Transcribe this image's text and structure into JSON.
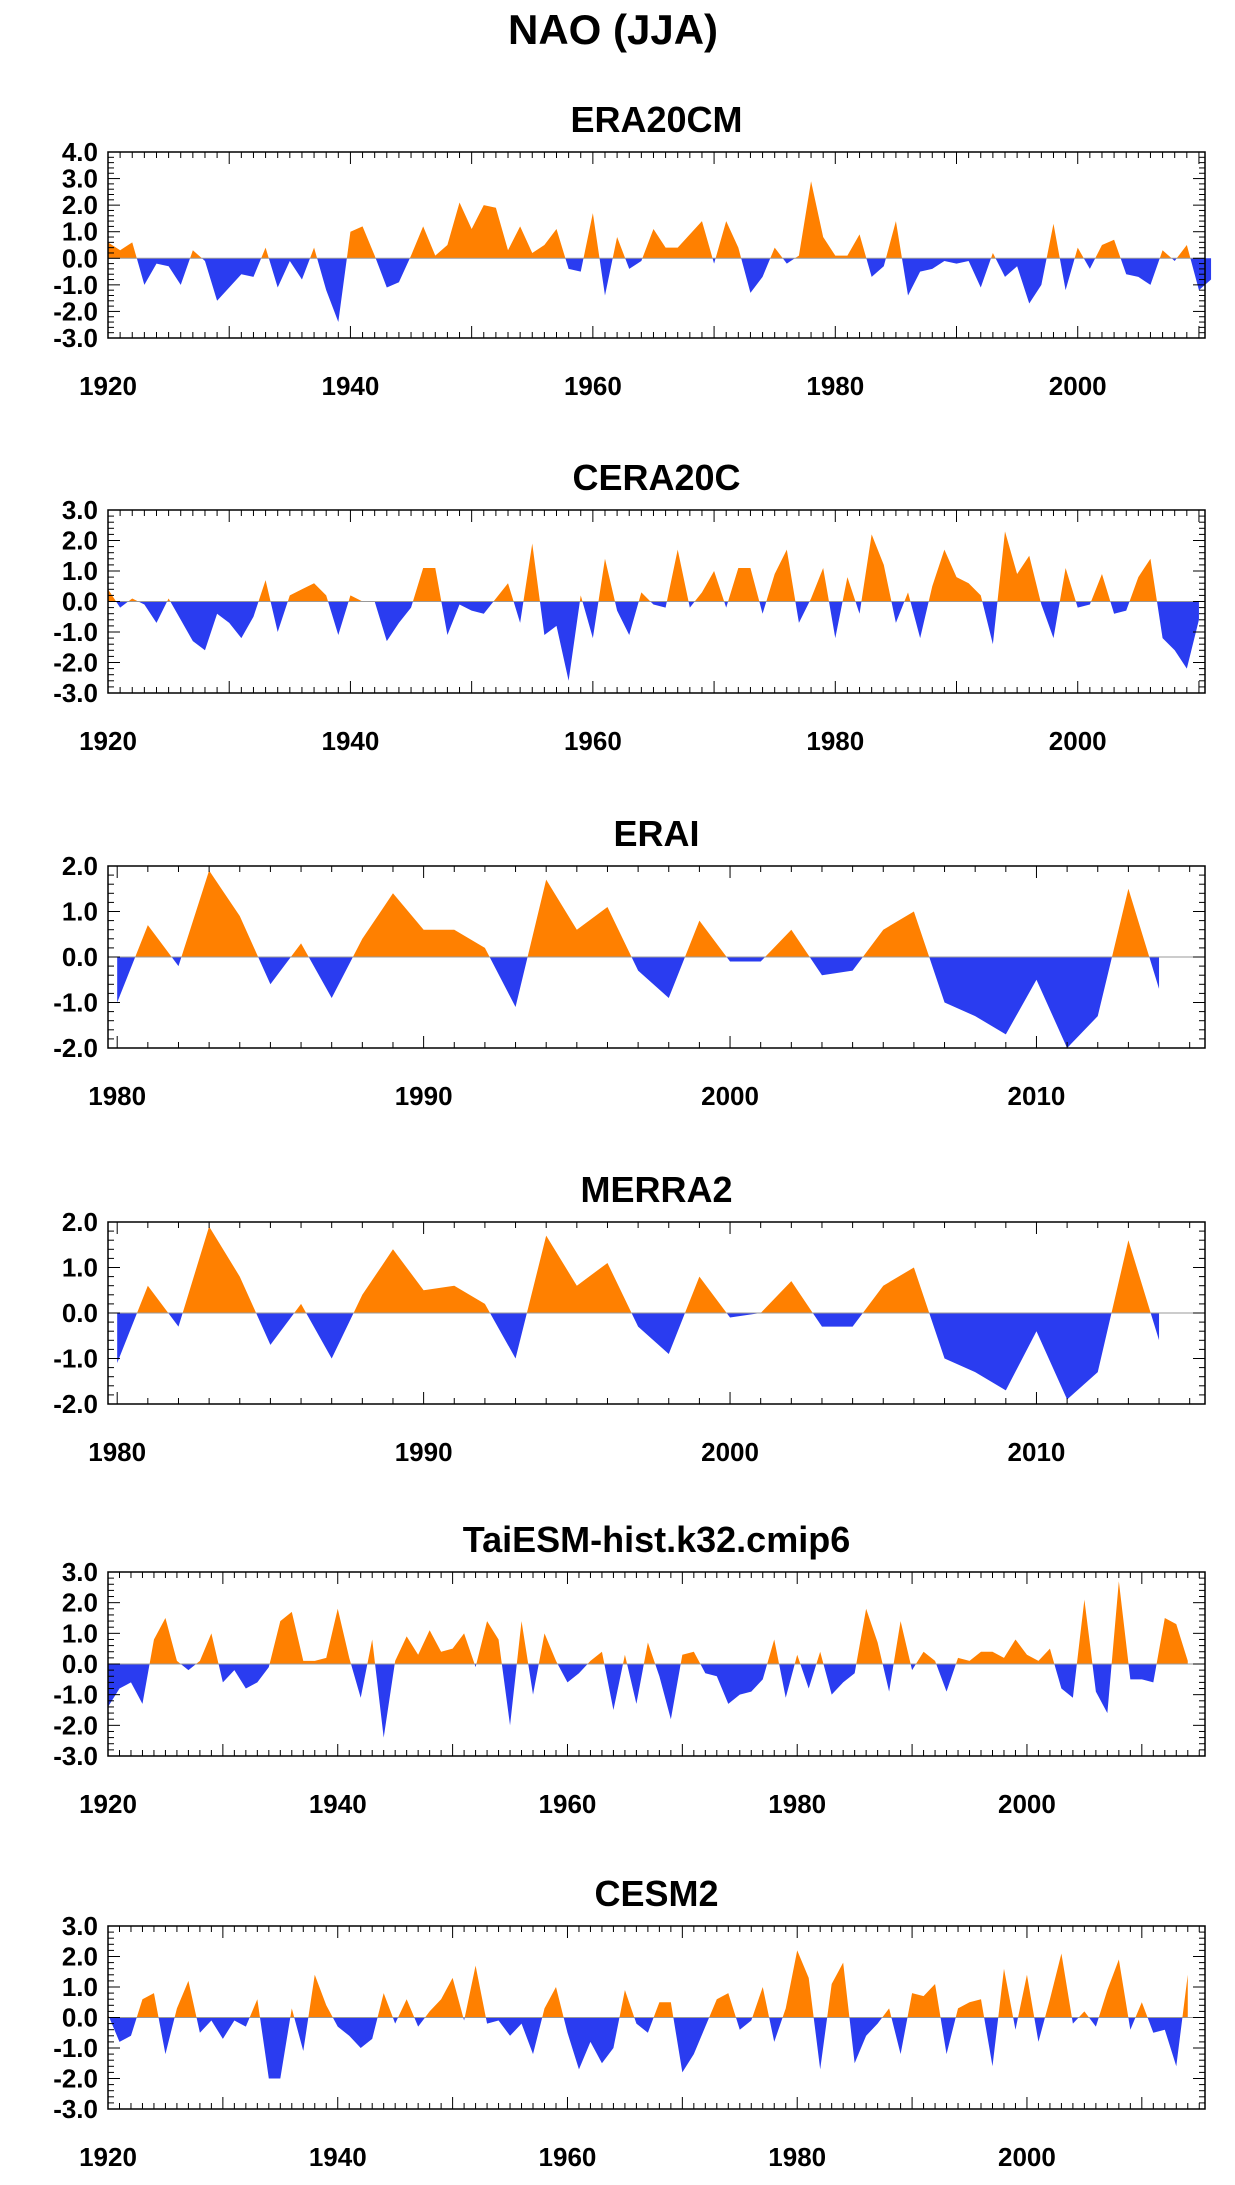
{
  "figure": {
    "title": "NAO (JJA)"
  },
  "colors": {
    "positive": "#ff8000",
    "negative": "#2a3cf0",
    "axis": "#000000",
    "zero_line": "#999999"
  },
  "chart_data": [
    {
      "type": "area",
      "title": "ERA20CM",
      "xlabel": "",
      "ylabel": "",
      "xlim": [
        1920,
        2010.5
      ],
      "ylim": [
        -3.0,
        4.0
      ],
      "yticks": [
        "4.0",
        "3.0",
        "2.0",
        "1.0",
        "0.0",
        "-1.0",
        "-2.0",
        "-3.0"
      ],
      "xticks": [
        "1920",
        "1940",
        "1960",
        "1980",
        "2000"
      ],
      "grid": false,
      "x_start": 1920,
      "values": [
        0.6,
        0.3,
        0.6,
        -1.0,
        -0.2,
        -0.3,
        -1.0,
        0.3,
        -0.1,
        -1.6,
        -1.1,
        -0.6,
        -0.7,
        0.4,
        -1.1,
        -0.1,
        -0.8,
        0.4,
        -1.2,
        -2.4,
        1.0,
        1.2,
        0.1,
        -1.1,
        -0.9,
        0.1,
        1.2,
        0.1,
        0.5,
        2.1,
        1.1,
        2.0,
        1.9,
        0.3,
        1.2,
        0.2,
        0.5,
        1.1,
        -0.4,
        -0.5,
        1.7,
        -1.4,
        0.8,
        -0.4,
        -0.1,
        1.1,
        0.4,
        0.4,
        0.9,
        1.4,
        -0.2,
        1.4,
        0.4,
        -1.3,
        -0.7,
        0.4,
        -0.2,
        0.1,
        2.9,
        0.8,
        0.1,
        0.1,
        0.9,
        -0.7,
        -0.3,
        1.4,
        -1.4,
        -0.5,
        -0.4,
        -0.1,
        -0.2,
        -0.1,
        -1.1,
        0.2,
        -0.7,
        -0.3,
        -1.7,
        -1.0,
        1.3,
        -1.2,
        0.4,
        -0.4,
        0.5,
        0.7,
        -0.6,
        -0.7,
        -1.0,
        0.3,
        -0.1,
        0.5,
        -1.2,
        -0.8
      ]
    },
    {
      "type": "area",
      "title": "CERA20C",
      "xlabel": "",
      "ylabel": "",
      "xlim": [
        1920,
        2010.5
      ],
      "ylim": [
        -3.0,
        3.0
      ],
      "yticks": [
        "3.0",
        "2.0",
        "1.0",
        "0.0",
        "-1.0",
        "-2.0",
        "-3.0"
      ],
      "xticks": [
        "1920",
        "1940",
        "1960",
        "1980",
        "2000"
      ],
      "grid": false,
      "x_start": 1920,
      "values": [
        0.4,
        -0.2,
        0.1,
        -0.1,
        -0.7,
        0.1,
        -0.6,
        -1.3,
        -1.6,
        -0.4,
        -0.7,
        -1.2,
        -0.5,
        0.7,
        -1.0,
        0.2,
        0.4,
        0.6,
        0.2,
        -1.1,
        0.2,
        0.0,
        0.0,
        -1.3,
        -0.7,
        -0.2,
        1.1,
        1.1,
        -1.1,
        -0.1,
        -0.3,
        -0.4,
        0.1,
        0.6,
        -0.7,
        1.9,
        -1.1,
        -0.8,
        -2.6,
        0.2,
        -1.2,
        1.4,
        -0.3,
        -1.1,
        0.3,
        -0.1,
        -0.2,
        1.7,
        -0.2,
        0.3,
        1.0,
        -0.2,
        1.1,
        1.1,
        -0.4,
        0.9,
        1.7,
        -0.7,
        0.1,
        1.1,
        -1.2,
        0.8,
        -0.4,
        2.2,
        1.2,
        -0.7,
        0.3,
        -1.2,
        0.5,
        1.7,
        0.8,
        0.6,
        0.2,
        -1.4,
        2.3,
        0.9,
        1.5,
        -0.1,
        -1.2,
        1.1,
        -0.2,
        -0.1,
        0.9,
        -0.4,
        -0.3,
        0.8,
        1.4,
        -1.2,
        -1.6,
        -2.2,
        -0.6
      ]
    },
    {
      "type": "area",
      "title": "ERAI",
      "xlabel": "",
      "ylabel": "",
      "xlim": [
        1979.7,
        2015.5
      ],
      "ylim": [
        -2.0,
        2.0
      ],
      "yticks": [
        "2.0",
        "1.0",
        "0.0",
        "-1.0",
        "-2.0"
      ],
      "xticks": [
        "1980",
        "1990",
        "2000",
        "2010"
      ],
      "grid": false,
      "x_start": 1980,
      "values": [
        -1.0,
        0.7,
        -0.2,
        1.9,
        0.9,
        -0.6,
        0.3,
        -0.9,
        0.4,
        1.4,
        0.6,
        0.6,
        0.2,
        -1.1,
        1.7,
        0.6,
        1.1,
        -0.3,
        -0.9,
        0.8,
        -0.1,
        -0.1,
        0.6,
        -0.4,
        -0.3,
        0.6,
        1.0,
        -1.0,
        -1.3,
        -1.7,
        -0.5,
        -2.0,
        -1.3,
        1.5,
        -0.7
      ]
    },
    {
      "type": "area",
      "title": "MERRA2",
      "xlabel": "",
      "ylabel": "",
      "xlim": [
        1979.7,
        2015.5
      ],
      "ylim": [
        -2.0,
        2.0
      ],
      "yticks": [
        "2.0",
        "1.0",
        "0.0",
        "-1.0",
        "-2.0"
      ],
      "xticks": [
        "1980",
        "1990",
        "2000",
        "2010"
      ],
      "grid": false,
      "x_start": 1980,
      "values": [
        -1.1,
        0.6,
        -0.3,
        1.9,
        0.8,
        -0.7,
        0.2,
        -1.0,
        0.4,
        1.4,
        0.5,
        0.6,
        0.2,
        -1.0,
        1.7,
        0.6,
        1.1,
        -0.3,
        -0.9,
        0.8,
        -0.1,
        0.0,
        0.7,
        -0.3,
        -0.3,
        0.6,
        1.0,
        -1.0,
        -1.3,
        -1.7,
        -0.4,
        -1.9,
        -1.3,
        1.6,
        -0.6
      ]
    },
    {
      "type": "area",
      "title": "TaiESM-hist.k32.cmip6",
      "xlabel": "",
      "ylabel": "",
      "xlim": [
        1920,
        2015.5
      ],
      "ylim": [
        -3.0,
        3.0
      ],
      "yticks": [
        "3.0",
        "2.0",
        "1.0",
        "0.0",
        "-1.0",
        "-2.0",
        "-3.0"
      ],
      "xticks": [
        "1920",
        "1940",
        "1960",
        "1980",
        "2000"
      ],
      "grid": false,
      "x_start": 1920,
      "values": [
        -1.4,
        -0.8,
        -0.6,
        -1.3,
        0.8,
        1.5,
        0.1,
        -0.2,
        0.1,
        1.0,
        -0.6,
        -0.2,
        -0.8,
        -0.6,
        -0.1,
        1.4,
        1.7,
        0.1,
        0.1,
        0.2,
        1.8,
        0.2,
        -1.1,
        0.8,
        -2.4,
        0.1,
        0.9,
        0.3,
        1.1,
        0.4,
        0.5,
        1.0,
        -0.1,
        1.4,
        0.8,
        -2.0,
        1.4,
        -1.0,
        1.0,
        0.1,
        -0.6,
        -0.3,
        0.1,
        0.4,
        -1.5,
        0.3,
        -1.3,
        0.7,
        -0.4,
        -1.8,
        0.3,
        0.4,
        -0.3,
        -0.4,
        -1.3,
        -1.0,
        -0.9,
        -0.5,
        0.8,
        -1.1,
        0.3,
        -0.8,
        0.4,
        -1.0,
        -0.6,
        -0.3,
        1.8,
        0.7,
        -0.9,
        1.4,
        -0.2,
        0.4,
        0.1,
        -0.9,
        0.2,
        0.1,
        0.4,
        0.4,
        0.2,
        0.8,
        0.3,
        0.1,
        0.5,
        -0.8,
        -1.1,
        2.1,
        -0.9,
        -1.6,
        2.7,
        -0.5,
        -0.5,
        -0.6,
        1.5,
        1.3,
        0.1
      ]
    },
    {
      "type": "area",
      "title": "CESM2",
      "xlabel": "",
      "ylabel": "",
      "xlim": [
        1920,
        2015.5
      ],
      "ylim": [
        -3.0,
        3.0
      ],
      "yticks": [
        "3.0",
        "2.0",
        "1.0",
        "0.0",
        "-1.0",
        "-2.0",
        "-3.0"
      ],
      "xticks": [
        "1920",
        "1940",
        "1960",
        "1980",
        "2000"
      ],
      "grid": false,
      "x_start": 1920,
      "values": [
        0.1,
        -0.8,
        -0.6,
        0.6,
        0.8,
        -1.2,
        0.3,
        1.2,
        -0.5,
        -0.1,
        -0.7,
        -0.1,
        -0.3,
        0.6,
        -2.0,
        -2.0,
        0.3,
        -1.1,
        1.4,
        0.4,
        -0.3,
        -0.6,
        -1.0,
        -0.7,
        0.8,
        -0.2,
        0.6,
        -0.3,
        0.2,
        0.6,
        1.3,
        -0.1,
        1.7,
        -0.2,
        -0.1,
        -0.6,
        -0.2,
        -1.2,
        0.3,
        1.0,
        -0.5,
        -1.7,
        -0.8,
        -1.5,
        -1.0,
        0.9,
        -0.2,
        -0.5,
        0.5,
        0.5,
        -1.8,
        -1.2,
        -0.3,
        0.6,
        0.8,
        -0.4,
        -0.1,
        1.0,
        -0.8,
        0.3,
        2.2,
        1.3,
        -1.7,
        1.1,
        1.8,
        -1.5,
        -0.6,
        -0.2,
        0.3,
        -1.2,
        0.8,
        0.7,
        1.1,
        -1.2,
        0.3,
        0.5,
        0.6,
        -1.6,
        1.6,
        -0.4,
        1.4,
        -0.8,
        0.6,
        2.1,
        -0.2,
        0.2,
        -0.3,
        0.9,
        1.9,
        -0.4,
        0.5,
        -0.5,
        -0.4,
        -1.6,
        1.4
      ]
    }
  ]
}
